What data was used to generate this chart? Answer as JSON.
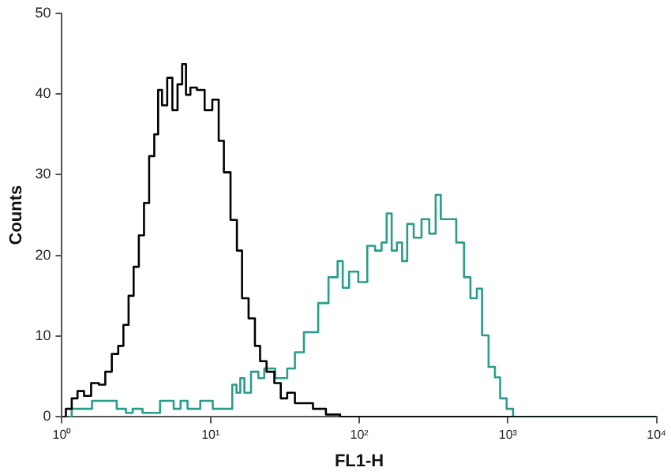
{
  "chart_data": {
    "type": "step",
    "xlabel": "FL1-H",
    "ylabel": "Counts",
    "log": "x",
    "xlim": [
      1,
      10000
    ],
    "ylim": [
      0,
      50
    ],
    "xticks": [
      {
        "value": 1,
        "label": "10⁰"
      },
      {
        "value": 10,
        "label": "10¹"
      },
      {
        "value": 100,
        "label": "10²"
      },
      {
        "value": 1000,
        "label": "10³"
      },
      {
        "value": 10000,
        "label": "10⁴"
      }
    ],
    "yticks": [
      0,
      10,
      20,
      30,
      40,
      50
    ],
    "grid": false,
    "legend": false,
    "marker": "none",
    "line_style": "solid",
    "series": [
      {
        "color": "#000000",
        "x": [
          1.01,
          1.12,
          1.21,
          1.34,
          1.48,
          1.67,
          1.88,
          2.04,
          2.3,
          2.49,
          2.7,
          2.92,
          3.16,
          3.43,
          3.71,
          4.02,
          4.35,
          4.53,
          4.91,
          5.32,
          5.76,
          6.24,
          6.65,
          7.03,
          7.62,
          8.59,
          9.69,
          10.9,
          11.8,
          12.8,
          14.5,
          15.6,
          17,
          19.1,
          20.7,
          22.4,
          25.3,
          28.5,
          30.9,
          34.8,
          39.2,
          46,
          51.9,
          68.7,
          80.5,
          10000
        ],
        "values": [
          0,
          1,
          2.3,
          3.2,
          2.6,
          4.2,
          4,
          5.6,
          7.8,
          8.8,
          11.4,
          15,
          18.6,
          22.5,
          26.5,
          32.3,
          35,
          40.5,
          38.6,
          42,
          38,
          41.2,
          43.7,
          39.9,
          40.8,
          40.5,
          38,
          39.3,
          34.2,
          30.3,
          24.4,
          20.6,
          14.7,
          12.2,
          8.8,
          6.9,
          5.6,
          4.2,
          2.3,
          3,
          1.7,
          1.7,
          1,
          0.3,
          0,
          0
        ]
      },
      {
        "color": "#2a9d8a",
        "x": [
          1.12,
          1.21,
          2.1,
          2.6,
          2.8,
          3.2,
          3.8,
          5.5,
          5.8,
          6.8,
          7.2,
          10.1,
          10.6,
          13.5,
          14.5,
          15.4,
          16.3,
          17.5,
          20,
          22,
          24,
          30.9,
          34.8,
          39.2,
          46,
          49.9,
          56.2,
          68.7,
          74.5,
          80.5,
          90.8,
          107,
          120,
          136,
          147,
          159,
          172,
          187,
          202,
          219,
          247,
          279,
          314,
          340,
          368,
          415,
          487,
          528,
          594,
          644,
          698,
          787,
          851,
          925,
          1040,
          1130,
          10000
        ],
        "values": [
          0,
          1,
          2,
          1,
          0.5,
          1,
          0.5,
          2,
          1,
          2,
          1,
          2,
          1,
          1,
          4,
          3,
          4.8,
          3,
          5.6,
          4.8,
          6,
          4.8,
          6,
          8,
          10.5,
          10.5,
          14.1,
          17.3,
          19.3,
          16,
          18,
          16.7,
          21.2,
          20.6,
          21.6,
          25.2,
          20.6,
          21.6,
          19.3,
          23.9,
          22.2,
          24.5,
          22.7,
          27.5,
          24.5,
          24.5,
          21.6,
          17.3,
          14.7,
          15.9,
          10.1,
          6.2,
          4.9,
          2.3,
          1,
          0,
          0
        ]
      }
    ]
  }
}
